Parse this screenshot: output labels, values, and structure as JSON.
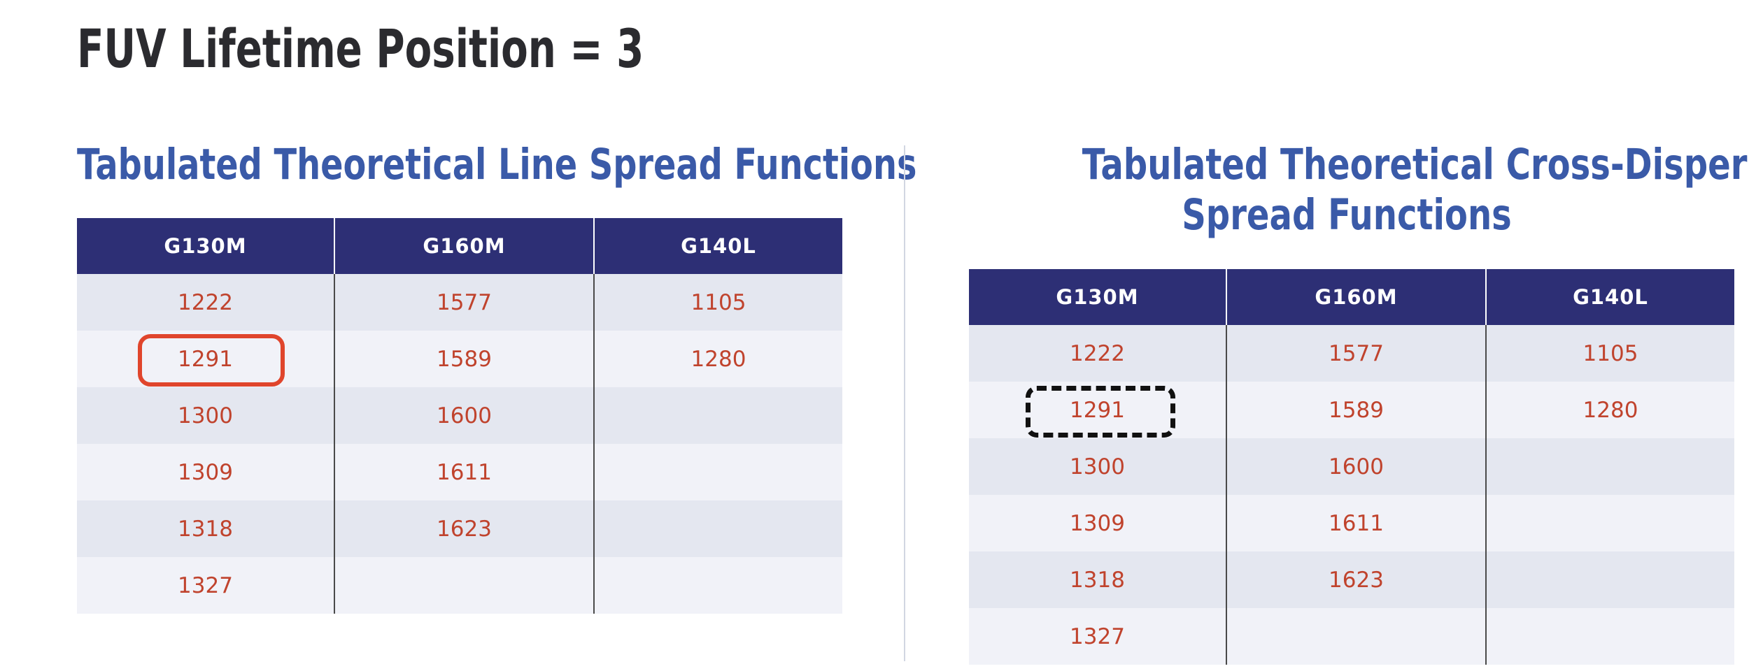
{
  "page": {
    "title": "FUV Lifetime Position = 3"
  },
  "left_section": {
    "title": "Tabulated Theoretical Line Spread Functions",
    "columns": [
      "G130M",
      "G160M",
      "G140L"
    ],
    "rows": [
      [
        "1222",
        "1577",
        "1105"
      ],
      [
        "1291",
        "1589",
        "1280"
      ],
      [
        "1300",
        "1600",
        ""
      ],
      [
        "1309",
        "1611",
        ""
      ],
      [
        "1318",
        "1623",
        ""
      ],
      [
        "1327",
        "",
        ""
      ]
    ],
    "highlighted_value": "1291",
    "highlight_color": "#e0452c"
  },
  "right_section": {
    "title_line1": "Tabulated Theoretical Cross-Dispersion",
    "title_line2": "Spread Functions",
    "columns": [
      "G130M",
      "G160M",
      "G140L"
    ],
    "rows": [
      [
        "1222",
        "1577",
        "1105"
      ],
      [
        "1291",
        "1589",
        "1280"
      ],
      [
        "1300",
        "1600",
        ""
      ],
      [
        "1309",
        "1611",
        ""
      ],
      [
        "1318",
        "1623",
        ""
      ],
      [
        "1327",
        "",
        ""
      ]
    ],
    "highlighted_value": "1291",
    "highlight_style": "dashed",
    "highlight_color": "#111111"
  },
  "colors": {
    "title": "#2b2b2f",
    "section_title": "#3a5aa8",
    "header_bg": "#2d2f75",
    "header_text": "#ffffff",
    "cell_text": "#c0432d",
    "row_odd": "#e4e7f0",
    "row_even": "#f1f2f8"
  }
}
